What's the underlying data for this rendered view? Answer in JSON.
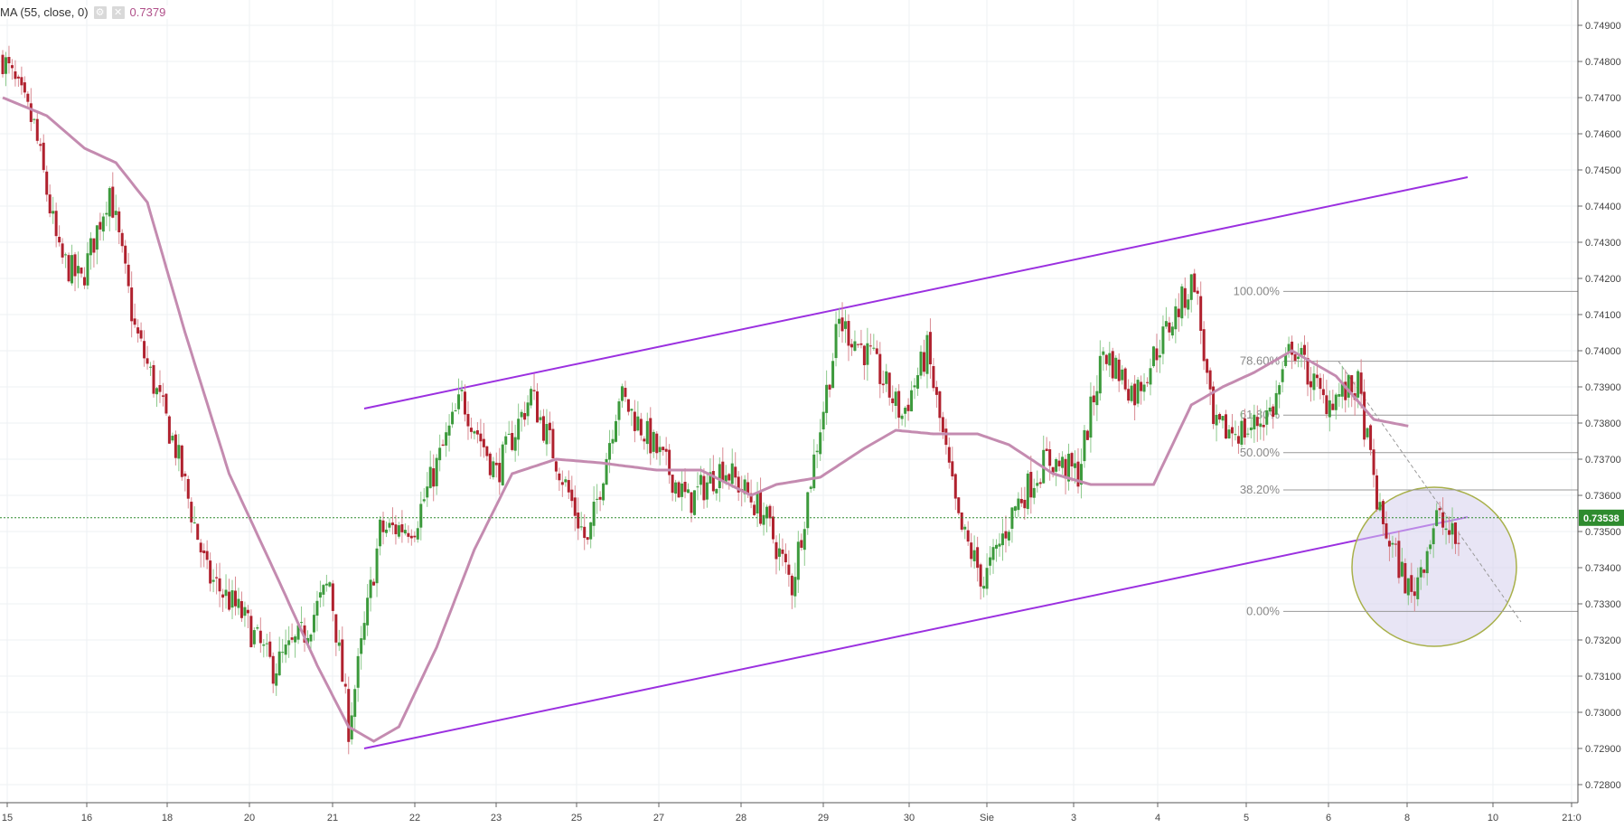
{
  "legend": {
    "indicator": "MA (55, close, 0)",
    "value": "0.7379",
    "settings_icon": "gear-icon",
    "close_icon": "close-icon"
  },
  "colors": {
    "up": "#3c9a3c",
    "down": "#b0212e",
    "ma": "#c48bb0",
    "channel": "#9b30e0",
    "fib": "#999999",
    "price_label_bg": "#2e8b2e",
    "circle_fill": "#d6d0ec",
    "circle_stroke": "#a8b04a"
  },
  "chart_data": {
    "type": "candlestick",
    "title": "",
    "ylim": [
      0.7275,
      0.7497
    ],
    "y_ticks": [
      "0.74900",
      "0.74800",
      "0.74700",
      "0.74600",
      "0.74500",
      "0.74400",
      "0.74300",
      "0.74200",
      "0.74100",
      "0.74000",
      "0.73900",
      "0.73800",
      "0.73700",
      "0.73600",
      "0.73500",
      "0.73400",
      "0.73300",
      "0.73200",
      "0.73100",
      "0.73000",
      "0.72900",
      "0.72800"
    ],
    "x_ticks": [
      "15",
      "16",
      "18",
      "20",
      "21",
      "22",
      "23",
      "25",
      "27",
      "28",
      "29",
      "30",
      "Sie",
      "3",
      "4",
      "5",
      "6",
      "8",
      "10",
      "21:0"
    ],
    "current_price": "0.73538",
    "current_price_value": 0.73538,
    "ma_period": 55,
    "candle_anchors": [
      [
        0,
        0.7481
      ],
      [
        10,
        0.7462
      ],
      [
        18,
        0.7426
      ],
      [
        25,
        0.7419
      ],
      [
        34,
        0.7445
      ],
      [
        42,
        0.7406
      ],
      [
        55,
        0.7373
      ],
      [
        65,
        0.7338
      ],
      [
        76,
        0.7327
      ],
      [
        86,
        0.7312
      ],
      [
        96,
        0.7322
      ],
      [
        104,
        0.7336
      ],
      [
        110,
        0.7296
      ],
      [
        120,
        0.735
      ],
      [
        131,
        0.7352
      ],
      [
        146,
        0.7387
      ],
      [
        157,
        0.7366
      ],
      [
        168,
        0.7388
      ],
      [
        176,
        0.737
      ],
      [
        186,
        0.7346
      ],
      [
        196,
        0.7388
      ],
      [
        206,
        0.7375
      ],
      [
        218,
        0.7358
      ],
      [
        229,
        0.7368
      ],
      [
        242,
        0.7355
      ],
      [
        251,
        0.7335
      ],
      [
        258,
        0.737
      ],
      [
        266,
        0.7408
      ],
      [
        276,
        0.7398
      ],
      [
        286,
        0.7382
      ],
      [
        294,
        0.74
      ],
      [
        304,
        0.7352
      ],
      [
        312,
        0.7336
      ],
      [
        322,
        0.7357
      ],
      [
        332,
        0.737
      ],
      [
        342,
        0.7366
      ],
      [
        350,
        0.74
      ],
      [
        360,
        0.7388
      ],
      [
        368,
        0.7402
      ],
      [
        379,
        0.742
      ],
      [
        385,
        0.7378
      ],
      [
        396,
        0.7378
      ],
      [
        404,
        0.7384
      ],
      [
        410,
        0.7402
      ],
      [
        420,
        0.7386
      ],
      [
        431,
        0.739
      ],
      [
        438,
        0.7354
      ],
      [
        448,
        0.7332
      ],
      [
        456,
        0.7354
      ],
      [
        463,
        0.7346
      ]
    ],
    "ma_anchors": [
      [
        0,
        0.747
      ],
      [
        14,
        0.7465
      ],
      [
        26,
        0.7456
      ],
      [
        36,
        0.7452
      ],
      [
        46,
        0.7441
      ],
      [
        58,
        0.7405
      ],
      [
        72,
        0.7366
      ],
      [
        88,
        0.7336
      ],
      [
        100,
        0.7313
      ],
      [
        110,
        0.7296
      ],
      [
        118,
        0.7292
      ],
      [
        126,
        0.7296
      ],
      [
        138,
        0.7318
      ],
      [
        150,
        0.7345
      ],
      [
        162,
        0.7366
      ],
      [
        176,
        0.737
      ],
      [
        190,
        0.7369
      ],
      [
        208,
        0.7367
      ],
      [
        222,
        0.7367
      ],
      [
        238,
        0.736
      ],
      [
        246,
        0.7363
      ],
      [
        260,
        0.7365
      ],
      [
        274,
        0.7373
      ],
      [
        284,
        0.7378
      ],
      [
        296,
        0.7377
      ],
      [
        310,
        0.7377
      ],
      [
        320,
        0.7374
      ],
      [
        334,
        0.7366
      ],
      [
        346,
        0.7363
      ],
      [
        358,
        0.7363
      ],
      [
        366,
        0.7363
      ],
      [
        378,
        0.7385
      ],
      [
        388,
        0.739
      ],
      [
        398,
        0.7394
      ],
      [
        410,
        0.74
      ],
      [
        424,
        0.7393
      ],
      [
        436,
        0.7381
      ],
      [
        448,
        0.7379
      ]
    ],
    "annotations": {
      "channel_upper": {
        "x": [
          0.7226,
          0.7247
        ],
        "y": [
          0.7384,
          0.7448
        ]
      },
      "channel_lower": {
        "x": [
          0.7226,
          0.7247
        ],
        "y": [
          0.729,
          0.7354
        ]
      },
      "fibonacci": [
        {
          "label": "100.00%",
          "value": 0.74164
        },
        {
          "label": "78.60%",
          "value": 0.73971
        },
        {
          "label": "61.80%",
          "value": 0.73822
        },
        {
          "label": "50.00%",
          "value": 0.73718
        },
        {
          "label": "38.20%",
          "value": 0.73615
        },
        {
          "label": "0.00%",
          "value": 0.73279
        }
      ]
    }
  }
}
